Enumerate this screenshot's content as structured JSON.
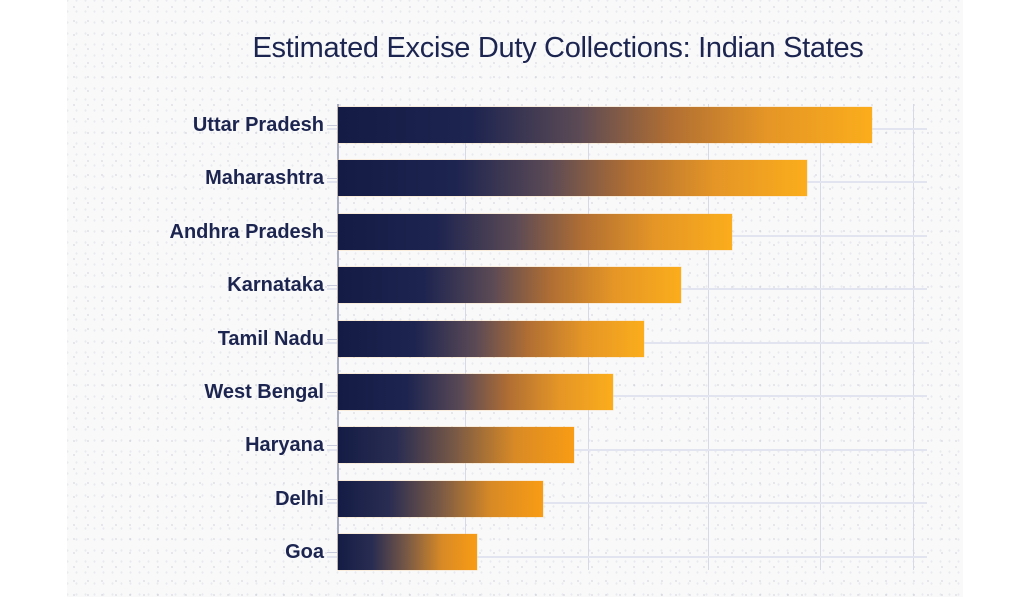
{
  "title": "Estimated Excise Duty Collections: Indian States",
  "colors": {
    "bar_gradient_start": "#141c45",
    "bar_gradient_end": "#fbad1c",
    "text": "#1c2550",
    "grid": "#d6d9ea",
    "background": "#f9f9fa"
  },
  "chart_data": {
    "type": "bar",
    "orientation": "horizontal",
    "title": "Estimated Excise Duty Collections: Indian States",
    "xlabel": "",
    "ylabel": "",
    "categories": [
      "Uttar Pradesh",
      "Maharashtra",
      "Andhra Pradesh",
      "Karnataka",
      "Tamil Nadu",
      "West Bengal",
      "Haryana",
      "Delhi",
      "Goa"
    ],
    "values": [
      100,
      87.8,
      73.8,
      64.2,
      57.3,
      51.5,
      44.2,
      38.4,
      26.0
    ],
    "value_note": "relative index (Uttar Pradesh = 100); no numeric axis labels shown",
    "x_tick_labels": [],
    "grid": true,
    "legend": null,
    "bar_style": "left-to-right gradient navy to orange"
  },
  "bars": [
    {
      "label": "Uttar Pradesh",
      "value": 100
    },
    {
      "label": "Maharashtra",
      "value": 87.8
    },
    {
      "label": "Andhra Pradesh",
      "value": 73.8
    },
    {
      "label": "Karnataka",
      "value": 64.2
    },
    {
      "label": "Tamil Nadu",
      "value": 57.3
    },
    {
      "label": "West Bengal",
      "value": 51.5
    },
    {
      "label": "Haryana",
      "value": 44.2
    },
    {
      "label": "Delhi",
      "value": 38.4
    },
    {
      "label": "Goa",
      "value": 26.0
    }
  ]
}
